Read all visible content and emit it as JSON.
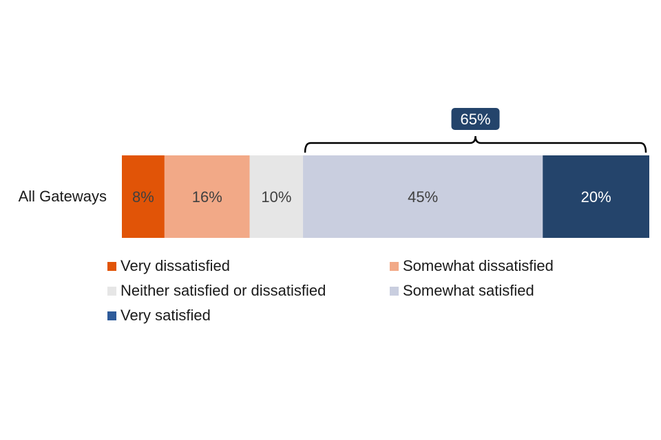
{
  "chart_data": {
    "type": "bar",
    "orientation": "horizontal",
    "stacked": true,
    "categories": [
      "All Gateways"
    ],
    "series": [
      {
        "name": "Very dissatisfied",
        "values": [
          8
        ],
        "label": "8%",
        "color": "#e15407",
        "label_color": "#404040"
      },
      {
        "name": "Somewhat dissatisfied",
        "values": [
          16
        ],
        "label": "16%",
        "color": "#f2a987",
        "label_color": "#404040"
      },
      {
        "name": "Neither satisfied or dissatisfied",
        "values": [
          10
        ],
        "label": "10%",
        "color": "#e6e6e6",
        "label_color": "#404040"
      },
      {
        "name": "Somewhat satisfied",
        "values": [
          45
        ],
        "label": "45%",
        "color": "#c9cedf",
        "label_color": "#404040"
      },
      {
        "name": "Very satisfied",
        "values": [
          20
        ],
        "label": "20%",
        "color": "#24446b",
        "label_color": "#ffffff"
      }
    ],
    "annotations": [
      {
        "text": "65%",
        "spans_series": [
          "Somewhat satisfied",
          "Very satisfied"
        ],
        "color": "#24446b"
      }
    ],
    "legend": {
      "position": "bottom",
      "swatch_colors": [
        "#e15407",
        "#f2a987",
        "#e6e6e6",
        "#c9cedf",
        "#2e5b9a"
      ]
    },
    "xlim": [
      0,
      99
    ],
    "grid": false,
    "title": "",
    "xlabel": "",
    "ylabel": ""
  }
}
